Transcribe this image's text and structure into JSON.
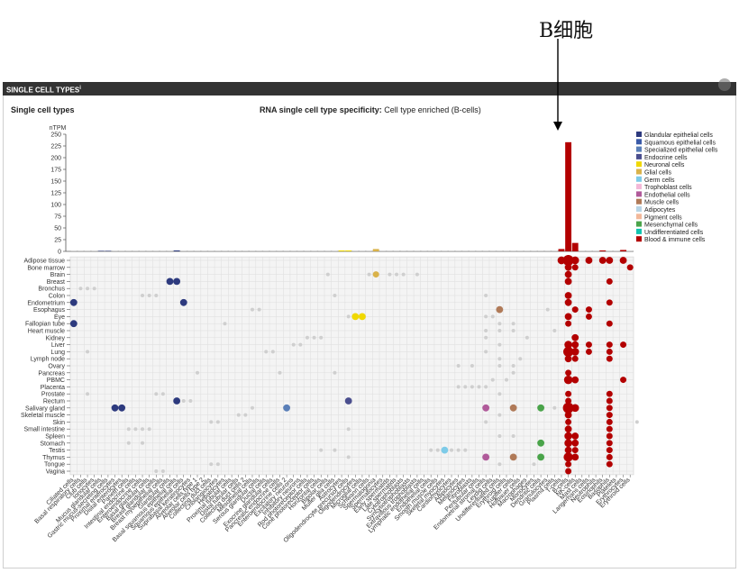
{
  "annotation": {
    "label": "B细胞"
  },
  "panel": {
    "header": "SINGLE CELL TYPES",
    "header_sup": "i",
    "subtitle": "Single cell types"
  },
  "chart_title": {
    "prefix": "RNA single cell type specificity:",
    "value": "Cell type enriched (B-cells)"
  },
  "chart_data": {
    "type": "bar",
    "title": "RNA single cell type specificity: Cell type enriched (B-cells)",
    "ylabel": "nTPM",
    "ylim": [
      0,
      250
    ],
    "yticks": [
      0,
      25,
      50,
      75,
      100,
      125,
      150,
      175,
      200,
      225,
      250
    ],
    "legend_position": "right",
    "legend": [
      {
        "name": "Glandular epithelial cells",
        "color": "#2d3a7e"
      },
      {
        "name": "Squamous epithelial cells",
        "color": "#3a5aa8"
      },
      {
        "name": "Specialized epithelial cells",
        "color": "#5a7fb8"
      },
      {
        "name": "Endocrine cells",
        "color": "#4a4e8e"
      },
      {
        "name": "Neuronal cells",
        "color": "#f0d800"
      },
      {
        "name": "Glial cells",
        "color": "#d9b24a"
      },
      {
        "name": "Germ cells",
        "color": "#7ecbe8"
      },
      {
        "name": "Trophoblast cells",
        "color": "#f3b8d8"
      },
      {
        "name": "Endothelial cells",
        "color": "#b05a9a"
      },
      {
        "name": "Muscle cells",
        "color": "#b07a58"
      },
      {
        "name": "Adipocytes",
        "color": "#b7d4e6"
      },
      {
        "name": "Pigment cells",
        "color": "#f2b89a"
      },
      {
        "name": "Mesenchymal cells",
        "color": "#4aa44a"
      },
      {
        "name": "Undifferentiated cells",
        "color": "#12c4b0"
      },
      {
        "name": "Blood & immune cells",
        "color": "#b30000"
      }
    ],
    "highlight_bars": [
      {
        "index": 71,
        "value": 5,
        "color": "#b30000"
      },
      {
        "index": 72,
        "value": 233,
        "color": "#b30000"
      },
      {
        "index": 73,
        "value": 18,
        "color": "#b30000"
      },
      {
        "index": 77,
        "value": 2,
        "color": "#b30000"
      },
      {
        "index": 80,
        "value": 3,
        "color": "#b30000"
      },
      {
        "index": 44,
        "value": 5,
        "color": "#d9b24a"
      },
      {
        "index": 39,
        "value": 2,
        "color": "#f0d800"
      },
      {
        "index": 40,
        "value": 2,
        "color": "#f0d800"
      },
      {
        "index": 15,
        "value": 2,
        "color": "#2d3a7e"
      },
      {
        "index": 4,
        "value": 1,
        "color": "#2d3a7e"
      },
      {
        "index": 5,
        "value": 1,
        "color": "#2d3a7e"
      }
    ],
    "tissues": [
      "Adipose tissue",
      "Bone marrow",
      "Brain",
      "Breast",
      "Bronchus",
      "Colon",
      "Endometrium",
      "Esophagus",
      "Eye",
      "Fallopian tube",
      "Heart muscle",
      "Kidney",
      "Liver",
      "Lung",
      "Lymph node",
      "Ovary",
      "Pancreas",
      "PBMC",
      "Placenta",
      "Prostate",
      "Rectum",
      "Salivary gland",
      "Skeletal muscle",
      "Skin",
      "Small intestine",
      "Spleen",
      "Stomach",
      "Testis",
      "Thymus",
      "Tongue",
      "Vagina"
    ],
    "cell_types": [
      "Ciliated cells",
      "Basal respiratory cells",
      "Club cells",
      "Ionocytes",
      "Mucus glandular cells",
      "Gastric mucus-secreting cells",
      "Proximal enterocytes",
      "Distal enterocytes",
      "Paneth cells",
      "Intestinal endocrine cells",
      "Enteroendocrine cells",
      "Basal glandular cells",
      "Breast glandular cells",
      "Breast myoepithelial cells",
      "Glandular cells",
      "Basal squamous epithelial cells",
      "Squamous epithelial cells",
      "Suprabasal keratinocytes",
      "Alveolar cells type 1",
      "Alveolar cells type 2",
      "Collecting duct cells",
      "Cholangiocytes",
      "Hepatocytes",
      "Proximal tubular cells",
      "Distal tubular cells",
      "Collecting duct cells 2",
      "Mesothelial cells",
      "Serous glandular cells",
      "Ductal cells",
      "Exocrine glandular cells",
      "Pancreatic endocrine cells",
      "Enteroendocrine cells 2",
      "Excitatory neurons",
      "Inhibitory neurons",
      "Rod photoreceptor cells",
      "Cone photoreceptor cells",
      "Horizontal cells",
      "Bipolar cells",
      "Muller glia cells",
      "Astrocytes",
      "Oligodendrocyte precursor cells",
      "Oligodendrocytes",
      "Microglial cells",
      "Schwann cells",
      "Spermatogonia",
      "Spermatocytes",
      "Early spermatids",
      "Late spermatids",
      "Cytotrophoblasts",
      "Syncytiotrophoblasts",
      "Extravillous trophoblasts",
      "Lymphatic endothelial cells",
      "Endothelial cells",
      "Smooth muscle cells",
      "Skeletal myocytes",
      "Cardiomyocytes",
      "Adipocytes",
      "Melanocytes",
      "Fibroblasts",
      "Peritubular cells",
      "Endometrial stromal cells",
      "Leydig cells",
      "Undifferentiated cells",
      "Erythroid cells",
      "Kupffer cells",
      "Hofbauer cells",
      "Macrophages",
      "Monocytes",
      "Dendritic cells",
      "Granulocytes",
      "Plasma cells",
      "T-cells",
      "B-cells",
      "NK-cells",
      "Mast cells",
      "Langerhans cells",
      "Neutrophils",
      "Eosinophils",
      "Basophils",
      "Platelets",
      "Erythrocytes",
      "Erythroid cells"
    ],
    "dots": [
      {
        "t": 0,
        "c": 71,
        "v": 0.6,
        "col": "#b30000"
      },
      {
        "t": 0,
        "c": 72,
        "v": 1.0,
        "col": "#b30000"
      },
      {
        "t": 0,
        "c": 73,
        "v": 0.6,
        "col": "#b30000"
      },
      {
        "t": 0,
        "c": 75,
        "v": 0.5,
        "col": "#b30000"
      },
      {
        "t": 0,
        "c": 77,
        "v": 0.5,
        "col": "#b30000"
      },
      {
        "t": 0,
        "c": 78,
        "v": 0.5,
        "col": "#b30000"
      },
      {
        "t": 0,
        "c": 80,
        "v": 0.5,
        "col": "#b30000"
      },
      {
        "t": 1,
        "c": 72,
        "v": 0.5,
        "col": "#b30000"
      },
      {
        "t": 1,
        "c": 73,
        "v": 0.4,
        "col": "#b30000"
      },
      {
        "t": 1,
        "c": 81,
        "v": 0.4,
        "col": "#b30000"
      },
      {
        "t": 2,
        "c": 44,
        "v": 0.4,
        "col": "#d9b24a"
      },
      {
        "t": 2,
        "c": 72,
        "v": 0.5,
        "col": "#b30000"
      },
      {
        "t": 3,
        "c": 14,
        "v": 0.5,
        "col": "#2d3a7e"
      },
      {
        "t": 3,
        "c": 15,
        "v": 0.5,
        "col": "#2d3a7e"
      },
      {
        "t": 3,
        "c": 72,
        "v": 0.5,
        "col": "#b30000"
      },
      {
        "t": 3,
        "c": 78,
        "v": 0.4,
        "col": "#b30000"
      },
      {
        "t": 5,
        "c": 72,
        "v": 0.5,
        "col": "#b30000"
      },
      {
        "t": 6,
        "c": 0,
        "v": 0.5,
        "col": "#2d3a7e"
      },
      {
        "t": 6,
        "c": 16,
        "v": 0.5,
        "col": "#2d3a7e"
      },
      {
        "t": 6,
        "c": 72,
        "v": 0.5,
        "col": "#b30000"
      },
      {
        "t": 6,
        "c": 78,
        "v": 0.4,
        "col": "#b30000"
      },
      {
        "t": 7,
        "c": 62,
        "v": 0.5,
        "col": "#b07a58"
      },
      {
        "t": 7,
        "c": 73,
        "v": 0.4,
        "col": "#b30000"
      },
      {
        "t": 7,
        "c": 75,
        "v": 0.4,
        "col": "#b30000"
      },
      {
        "t": 8,
        "c": 41,
        "v": 0.5,
        "col": "#f0d800"
      },
      {
        "t": 8,
        "c": 42,
        "v": 0.5,
        "col": "#f0d800"
      },
      {
        "t": 8,
        "c": 72,
        "v": 0.5,
        "col": "#b30000"
      },
      {
        "t": 8,
        "c": 75,
        "v": 0.4,
        "col": "#b30000"
      },
      {
        "t": 9,
        "c": 0,
        "v": 0.5,
        "col": "#2d3a7e"
      },
      {
        "t": 9,
        "c": 72,
        "v": 0.4,
        "col": "#b30000"
      },
      {
        "t": 9,
        "c": 78,
        "v": 0.4,
        "col": "#b30000"
      },
      {
        "t": 11,
        "c": 73,
        "v": 0.5,
        "col": "#b30000"
      },
      {
        "t": 12,
        "c": 72,
        "v": 0.6,
        "col": "#b30000"
      },
      {
        "t": 12,
        "c": 73,
        "v": 0.5,
        "col": "#b30000"
      },
      {
        "t": 12,
        "c": 75,
        "v": 0.4,
        "col": "#b30000"
      },
      {
        "t": 12,
        "c": 78,
        "v": 0.4,
        "col": "#b30000"
      },
      {
        "t": 12,
        "c": 80,
        "v": 0.4,
        "col": "#b30000"
      },
      {
        "t": 13,
        "c": 72,
        "v": 0.9,
        "col": "#b30000"
      },
      {
        "t": 13,
        "c": 73,
        "v": 0.6,
        "col": "#b30000"
      },
      {
        "t": 13,
        "c": 75,
        "v": 0.4,
        "col": "#b30000"
      },
      {
        "t": 13,
        "c": 78,
        "v": 0.4,
        "col": "#b30000"
      },
      {
        "t": 14,
        "c": 72,
        "v": 0.5,
        "col": "#b30000"
      },
      {
        "t": 14,
        "c": 73,
        "v": 0.4,
        "col": "#b30000"
      },
      {
        "t": 14,
        "c": 78,
        "v": 0.4,
        "col": "#b30000"
      },
      {
        "t": 17,
        "c": 72,
        "v": 0.7,
        "col": "#b30000"
      },
      {
        "t": 17,
        "c": 73,
        "v": 0.5,
        "col": "#b30000"
      },
      {
        "t": 17,
        "c": 80,
        "v": 0.4,
        "col": "#b30000"
      },
      {
        "t": 19,
        "c": 72,
        "v": 0.4,
        "col": "#b30000"
      },
      {
        "t": 19,
        "c": 78,
        "v": 0.4,
        "col": "#b30000"
      },
      {
        "t": 20,
        "c": 15,
        "v": 0.5,
        "col": "#2d3a7e"
      },
      {
        "t": 20,
        "c": 40,
        "v": 0.5,
        "col": "#4a4e8e"
      },
      {
        "t": 20,
        "c": 72,
        "v": 0.4,
        "col": "#b30000"
      },
      {
        "t": 20,
        "c": 78,
        "v": 0.4,
        "col": "#b30000"
      },
      {
        "t": 21,
        "c": 6,
        "v": 0.5,
        "col": "#2d3a7e"
      },
      {
        "t": 21,
        "c": 7,
        "v": 0.5,
        "col": "#2d3a7e"
      },
      {
        "t": 21,
        "c": 31,
        "v": 0.5,
        "col": "#5a7fb8"
      },
      {
        "t": 21,
        "c": 60,
        "v": 0.5,
        "col": "#b05a9a"
      },
      {
        "t": 21,
        "c": 64,
        "v": 0.5,
        "col": "#b07a58"
      },
      {
        "t": 21,
        "c": 68,
        "v": 0.5,
        "col": "#4aa44a"
      },
      {
        "t": 21,
        "c": 72,
        "v": 1.0,
        "col": "#b30000"
      },
      {
        "t": 21,
        "c": 73,
        "v": 0.6,
        "col": "#b30000"
      },
      {
        "t": 21,
        "c": 78,
        "v": 0.4,
        "col": "#b30000"
      },
      {
        "t": 22,
        "c": 72,
        "v": 0.5,
        "col": "#b30000"
      },
      {
        "t": 22,
        "c": 78,
        "v": 0.4,
        "col": "#b30000"
      },
      {
        "t": 23,
        "c": 72,
        "v": 0.4,
        "col": "#b30000"
      },
      {
        "t": 23,
        "c": 78,
        "v": 0.4,
        "col": "#b30000"
      },
      {
        "t": 24,
        "c": 72,
        "v": 0.5,
        "col": "#b30000"
      },
      {
        "t": 24,
        "c": 78,
        "v": 0.4,
        "col": "#b30000"
      },
      {
        "t": 25,
        "c": 72,
        "v": 0.6,
        "col": "#b30000"
      },
      {
        "t": 25,
        "c": 73,
        "v": 0.5,
        "col": "#b30000"
      },
      {
        "t": 25,
        "c": 78,
        "v": 0.4,
        "col": "#b30000"
      },
      {
        "t": 26,
        "c": 68,
        "v": 0.5,
        "col": "#4aa44a"
      },
      {
        "t": 26,
        "c": 72,
        "v": 0.6,
        "col": "#b30000"
      },
      {
        "t": 26,
        "c": 73,
        "v": 0.5,
        "col": "#b30000"
      },
      {
        "t": 26,
        "c": 78,
        "v": 0.4,
        "col": "#b30000"
      },
      {
        "t": 27,
        "c": 72,
        "v": 0.5,
        "col": "#b30000"
      },
      {
        "t": 27,
        "c": 73,
        "v": 0.4,
        "col": "#b30000"
      },
      {
        "t": 27,
        "c": 78,
        "v": 0.4,
        "col": "#b30000"
      },
      {
        "t": 28,
        "c": 60,
        "v": 0.5,
        "col": "#b05a9a"
      },
      {
        "t": 28,
        "c": 64,
        "v": 0.5,
        "col": "#b07a58"
      },
      {
        "t": 28,
        "c": 68,
        "v": 0.5,
        "col": "#4aa44a"
      },
      {
        "t": 28,
        "c": 72,
        "v": 0.8,
        "col": "#b30000"
      },
      {
        "t": 28,
        "c": 73,
        "v": 0.5,
        "col": "#b30000"
      },
      {
        "t": 28,
        "c": 78,
        "v": 0.4,
        "col": "#b30000"
      },
      {
        "t": 29,
        "c": 72,
        "v": 0.4,
        "col": "#b30000"
      },
      {
        "t": 29,
        "c": 78,
        "v": 0.4,
        "col": "#b30000"
      },
      {
        "t": 30,
        "c": 72,
        "v": 0.4,
        "col": "#b30000"
      },
      {
        "t": 16,
        "c": 72,
        "v": 0.4,
        "col": "#b30000"
      },
      {
        "t": 27,
        "c": 54,
        "v": 0.5,
        "col": "#7ecbe8"
      }
    ],
    "grey_dots": [
      {
        "t": 2,
        "c": 43
      },
      {
        "t": 2,
        "c": 46
      },
      {
        "t": 2,
        "c": 47
      },
      {
        "t": 2,
        "c": 48
      },
      {
        "t": 2,
        "c": 50
      },
      {
        "t": 2,
        "c": 37
      },
      {
        "t": 4,
        "c": 1
      },
      {
        "t": 4,
        "c": 2
      },
      {
        "t": 4,
        "c": 3
      },
      {
        "t": 5,
        "c": 10
      },
      {
        "t": 5,
        "c": 11
      },
      {
        "t": 5,
        "c": 12
      },
      {
        "t": 5,
        "c": 38
      },
      {
        "t": 5,
        "c": 60
      },
      {
        "t": 7,
        "c": 26
      },
      {
        "t": 7,
        "c": 27
      },
      {
        "t": 7,
        "c": 69
      },
      {
        "t": 8,
        "c": 40
      },
      {
        "t": 8,
        "c": 60
      },
      {
        "t": 8,
        "c": 61
      },
      {
        "t": 9,
        "c": 22
      },
      {
        "t": 9,
        "c": 62
      },
      {
        "t": 9,
        "c": 64
      },
      {
        "t": 10,
        "c": 60
      },
      {
        "t": 10,
        "c": 62
      },
      {
        "t": 10,
        "c": 64
      },
      {
        "t": 10,
        "c": 70
      },
      {
        "t": 11,
        "c": 34
      },
      {
        "t": 11,
        "c": 35
      },
      {
        "t": 11,
        "c": 36
      },
      {
        "t": 11,
        "c": 60
      },
      {
        "t": 11,
        "c": 66
      },
      {
        "t": 12,
        "c": 32
      },
      {
        "t": 12,
        "c": 33
      },
      {
        "t": 12,
        "c": 62
      },
      {
        "t": 13,
        "c": 2
      },
      {
        "t": 13,
        "c": 28
      },
      {
        "t": 13,
        "c": 29
      },
      {
        "t": 13,
        "c": 60
      },
      {
        "t": 14,
        "c": 62
      },
      {
        "t": 14,
        "c": 65
      },
      {
        "t": 15,
        "c": 56
      },
      {
        "t": 15,
        "c": 58
      },
      {
        "t": 15,
        "c": 62
      },
      {
        "t": 15,
        "c": 64
      },
      {
        "t": 16,
        "c": 18
      },
      {
        "t": 16,
        "c": 30
      },
      {
        "t": 16,
        "c": 38
      },
      {
        "t": 16,
        "c": 64
      },
      {
        "t": 17,
        "c": 61
      },
      {
        "t": 17,
        "c": 63
      },
      {
        "t": 18,
        "c": 56
      },
      {
        "t": 18,
        "c": 57
      },
      {
        "t": 18,
        "c": 58
      },
      {
        "t": 18,
        "c": 59
      },
      {
        "t": 18,
        "c": 60
      },
      {
        "t": 19,
        "c": 2
      },
      {
        "t": 19,
        "c": 12
      },
      {
        "t": 19,
        "c": 13
      },
      {
        "t": 19,
        "c": 62
      },
      {
        "t": 20,
        "c": 16
      },
      {
        "t": 20,
        "c": 17
      },
      {
        "t": 21,
        "c": 26
      },
      {
        "t": 21,
        "c": 70
      },
      {
        "t": 22,
        "c": 24
      },
      {
        "t": 22,
        "c": 25
      },
      {
        "t": 22,
        "c": 62
      },
      {
        "t": 23,
        "c": 20
      },
      {
        "t": 23,
        "c": 21
      },
      {
        "t": 23,
        "c": 60
      },
      {
        "t": 23,
        "c": 82
      },
      {
        "t": 24,
        "c": 8
      },
      {
        "t": 24,
        "c": 9
      },
      {
        "t": 24,
        "c": 10
      },
      {
        "t": 24,
        "c": 11
      },
      {
        "t": 24,
        "c": 40
      },
      {
        "t": 25,
        "c": 62
      },
      {
        "t": 25,
        "c": 64
      },
      {
        "t": 26,
        "c": 8
      },
      {
        "t": 26,
        "c": 10
      },
      {
        "t": 27,
        "c": 36
      },
      {
        "t": 27,
        "c": 38
      },
      {
        "t": 27,
        "c": 52
      },
      {
        "t": 27,
        "c": 53
      },
      {
        "t": 27,
        "c": 55
      },
      {
        "t": 27,
        "c": 56
      },
      {
        "t": 27,
        "c": 57
      },
      {
        "t": 28,
        "c": 40
      },
      {
        "t": 29,
        "c": 20
      },
      {
        "t": 29,
        "c": 21
      },
      {
        "t": 29,
        "c": 62
      },
      {
        "t": 29,
        "c": 67
      },
      {
        "t": 30,
        "c": 12
      },
      {
        "t": 30,
        "c": 13
      }
    ]
  }
}
